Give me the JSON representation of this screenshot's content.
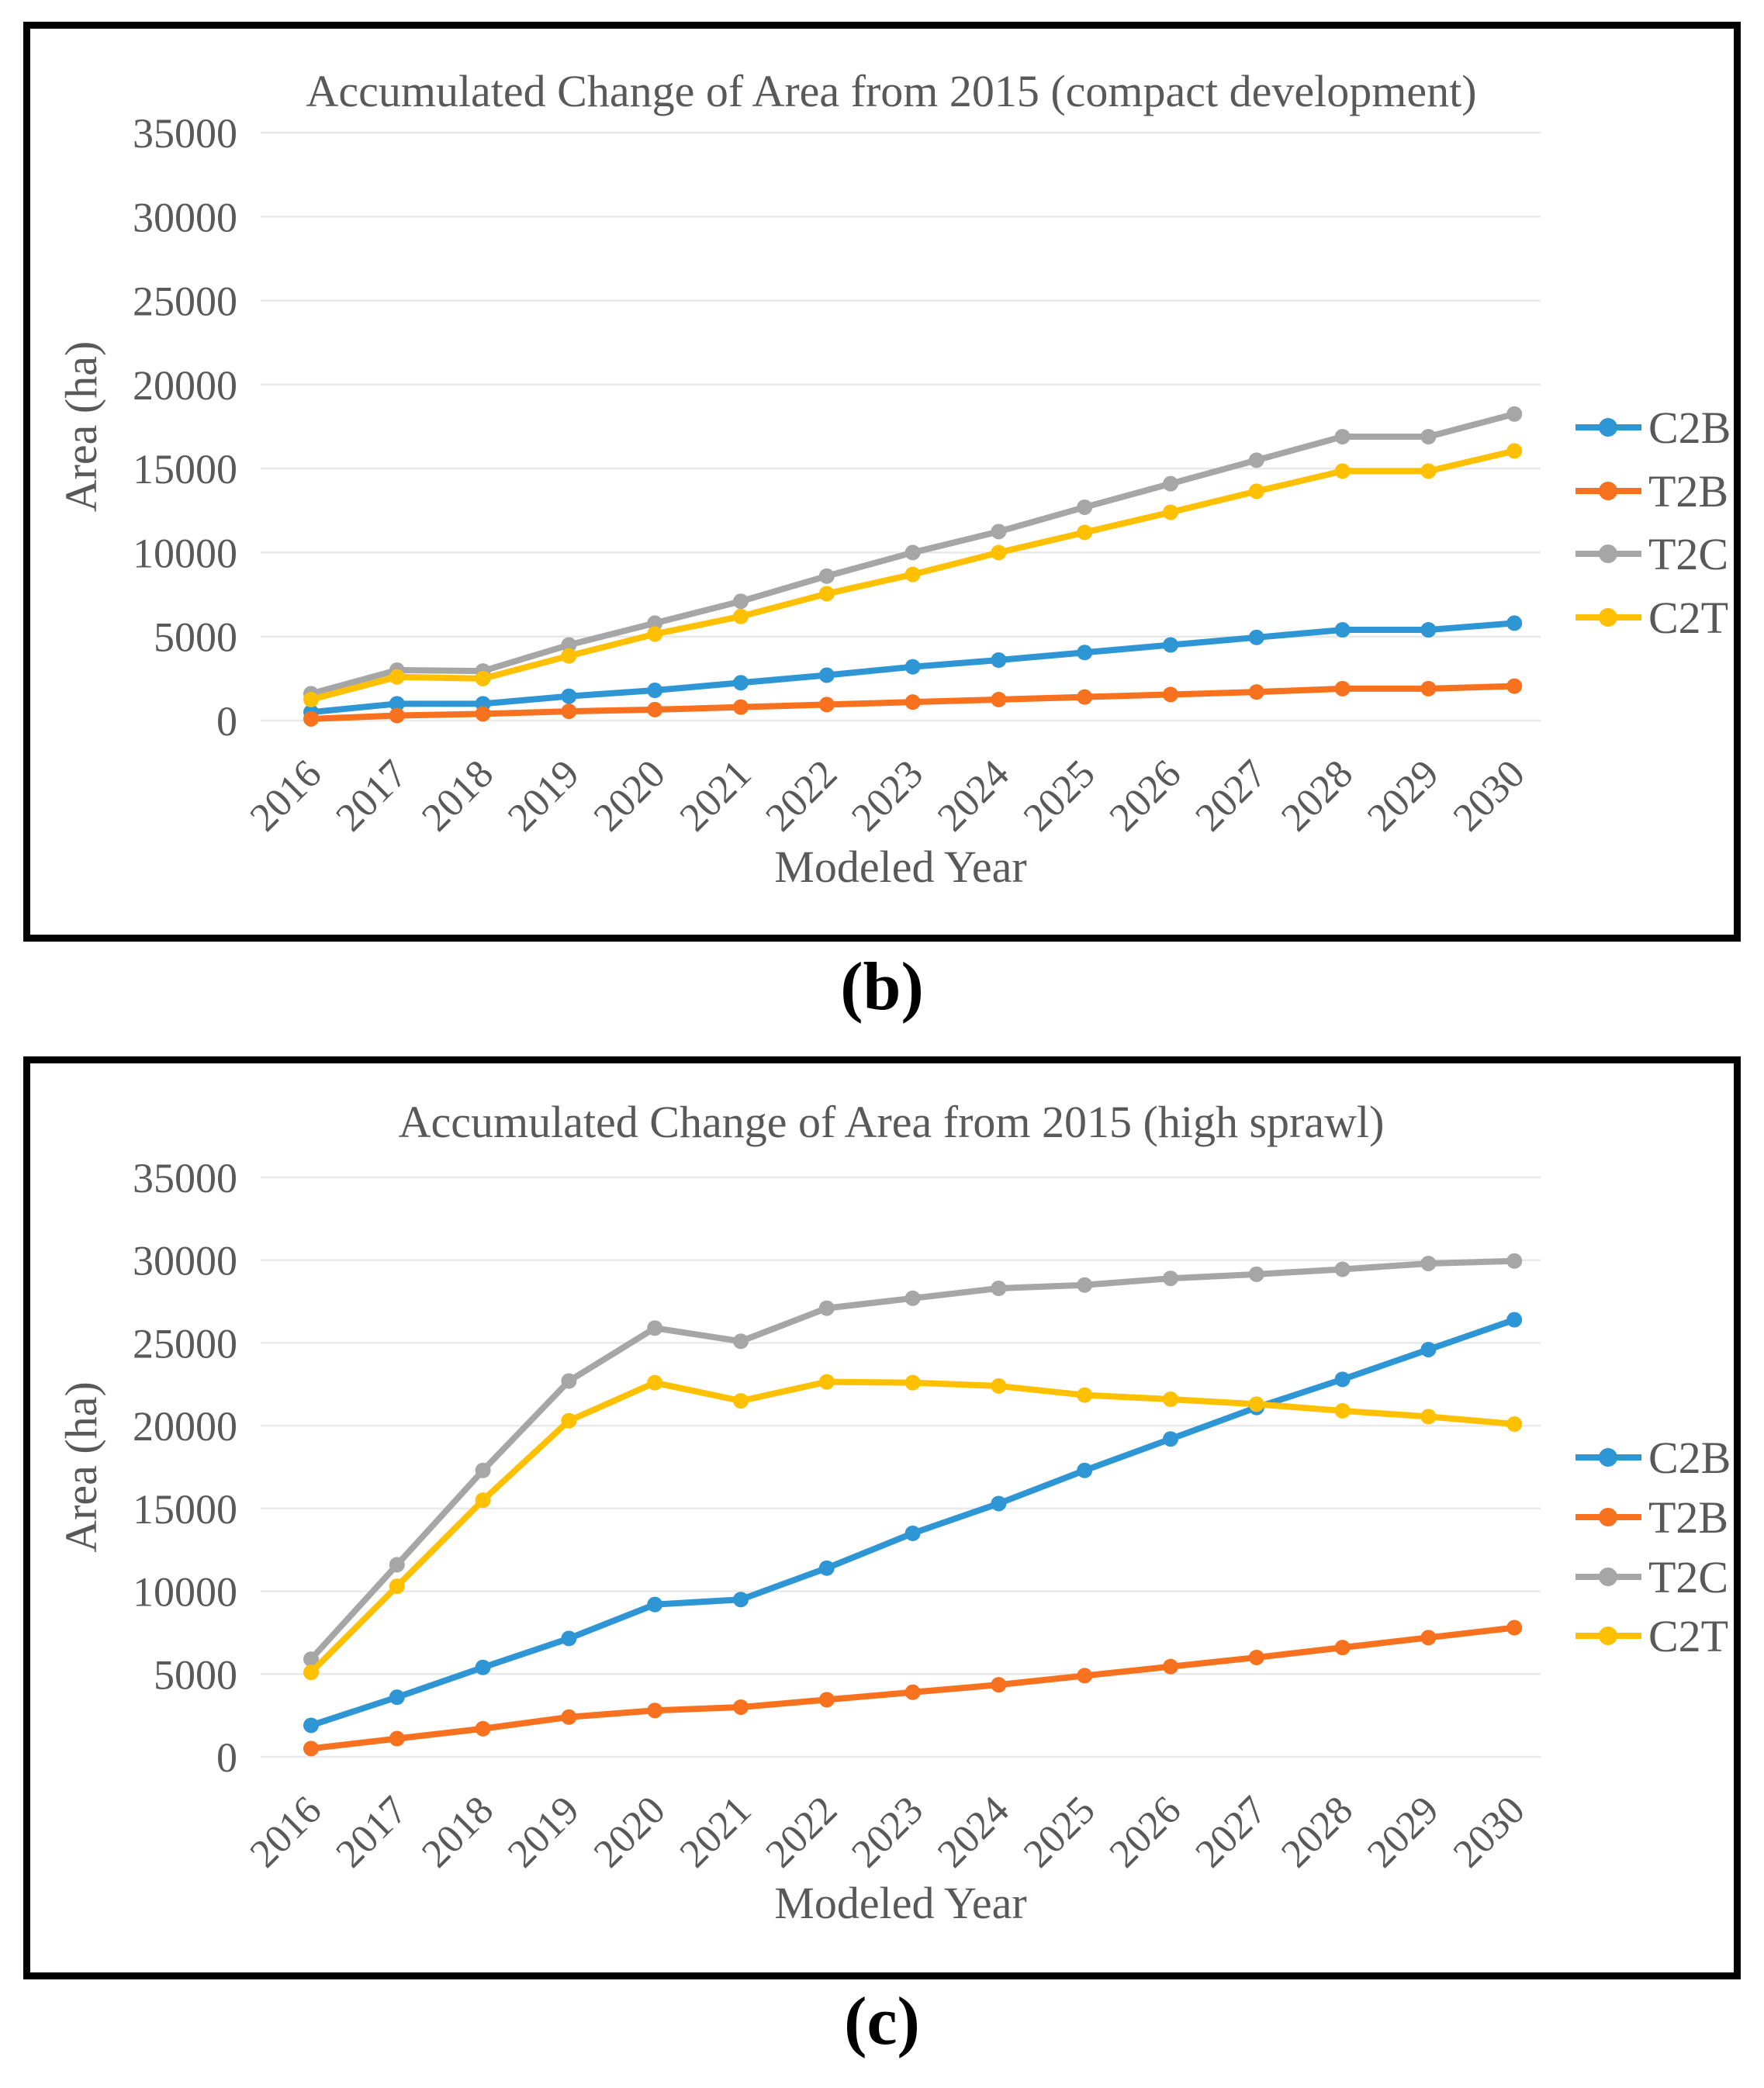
{
  "figure_labels": {
    "top": "(b)",
    "bottom": "(c)"
  },
  "colors": {
    "blue": "#2E96D4",
    "orange": "#F7711F",
    "gray": "#A6A6A6",
    "yellow": "#FFC000",
    "text": "#595959",
    "gridline": "#E9E9E9",
    "panel_border": "#000000",
    "background": "#FFFFFF"
  },
  "chart_data": [
    {
      "type": "line",
      "title": "Accumulated Change of Area from 2015 (compact development)",
      "xlabel": "Modeled Year",
      "ylabel": "Area (ha)",
      "ylim": [
        0,
        35000
      ],
      "yticks": [
        0,
        5000,
        10000,
        15000,
        20000,
        25000,
        30000,
        35000
      ],
      "grid": true,
      "legend_position": "right",
      "categories": [
        "2016",
        "2017",
        "2018",
        "2019",
        "2020",
        "2021",
        "2022",
        "2023",
        "2024",
        "2025",
        "2026",
        "2027",
        "2028",
        "2029",
        "2030"
      ],
      "series": [
        {
          "name": "C2B",
          "color_key": "blue",
          "values": [
            500,
            1000,
            1000,
            1450,
            1800,
            2250,
            2700,
            3200,
            3600,
            4050,
            4500,
            4950,
            5400,
            5400,
            5800
          ]
        },
        {
          "name": "T2B",
          "color_key": "orange",
          "values": [
            100,
            300,
            400,
            550,
            650,
            800,
            950,
            1100,
            1250,
            1400,
            1550,
            1700,
            1900,
            1900,
            2050
          ]
        },
        {
          "name": "T2C",
          "color_key": "gray",
          "values": [
            1600,
            3000,
            2950,
            4500,
            5800,
            7100,
            8600,
            10000,
            11250,
            12700,
            14100,
            15500,
            16900,
            16900,
            18250
          ]
        },
        {
          "name": "C2T",
          "color_key": "yellow",
          "values": [
            1250,
            2600,
            2500,
            3850,
            5150,
            6200,
            7550,
            8700,
            10000,
            11200,
            12400,
            13650,
            14850,
            14850,
            16050
          ]
        }
      ]
    },
    {
      "type": "line",
      "title": "Accumulated Change of Area from 2015 (high sprawl)",
      "xlabel": "Modeled Year",
      "ylabel": "Area (ha)",
      "ylim": [
        0,
        35000
      ],
      "yticks": [
        0,
        5000,
        10000,
        15000,
        20000,
        25000,
        30000,
        35000
      ],
      "grid": true,
      "legend_position": "right",
      "categories": [
        "2016",
        "2017",
        "2018",
        "2019",
        "2020",
        "2021",
        "2022",
        "2023",
        "2024",
        "2025",
        "2026",
        "2027",
        "2028",
        "2029",
        "2030"
      ],
      "series": [
        {
          "name": "C2B",
          "color_key": "blue",
          "values": [
            1900,
            3600,
            5400,
            7150,
            9200,
            9500,
            11400,
            13500,
            15300,
            17300,
            19200,
            21100,
            22800,
            24600,
            26400
          ]
        },
        {
          "name": "T2B",
          "color_key": "orange",
          "values": [
            500,
            1100,
            1700,
            2400,
            2800,
            3000,
            3450,
            3900,
            4350,
            4900,
            5450,
            6000,
            6600,
            7200,
            7800
          ]
        },
        {
          "name": "T2C",
          "color_key": "gray",
          "values": [
            5900,
            11600,
            17300,
            22700,
            25900,
            25100,
            27100,
            27700,
            28300,
            28500,
            28900,
            29150,
            29450,
            29800,
            29950
          ]
        },
        {
          "name": "C2T",
          "color_key": "yellow",
          "values": [
            5100,
            10300,
            15500,
            20300,
            22600,
            21500,
            22650,
            22600,
            22400,
            21850,
            21600,
            21300,
            20900,
            20550,
            20100
          ]
        }
      ]
    }
  ]
}
